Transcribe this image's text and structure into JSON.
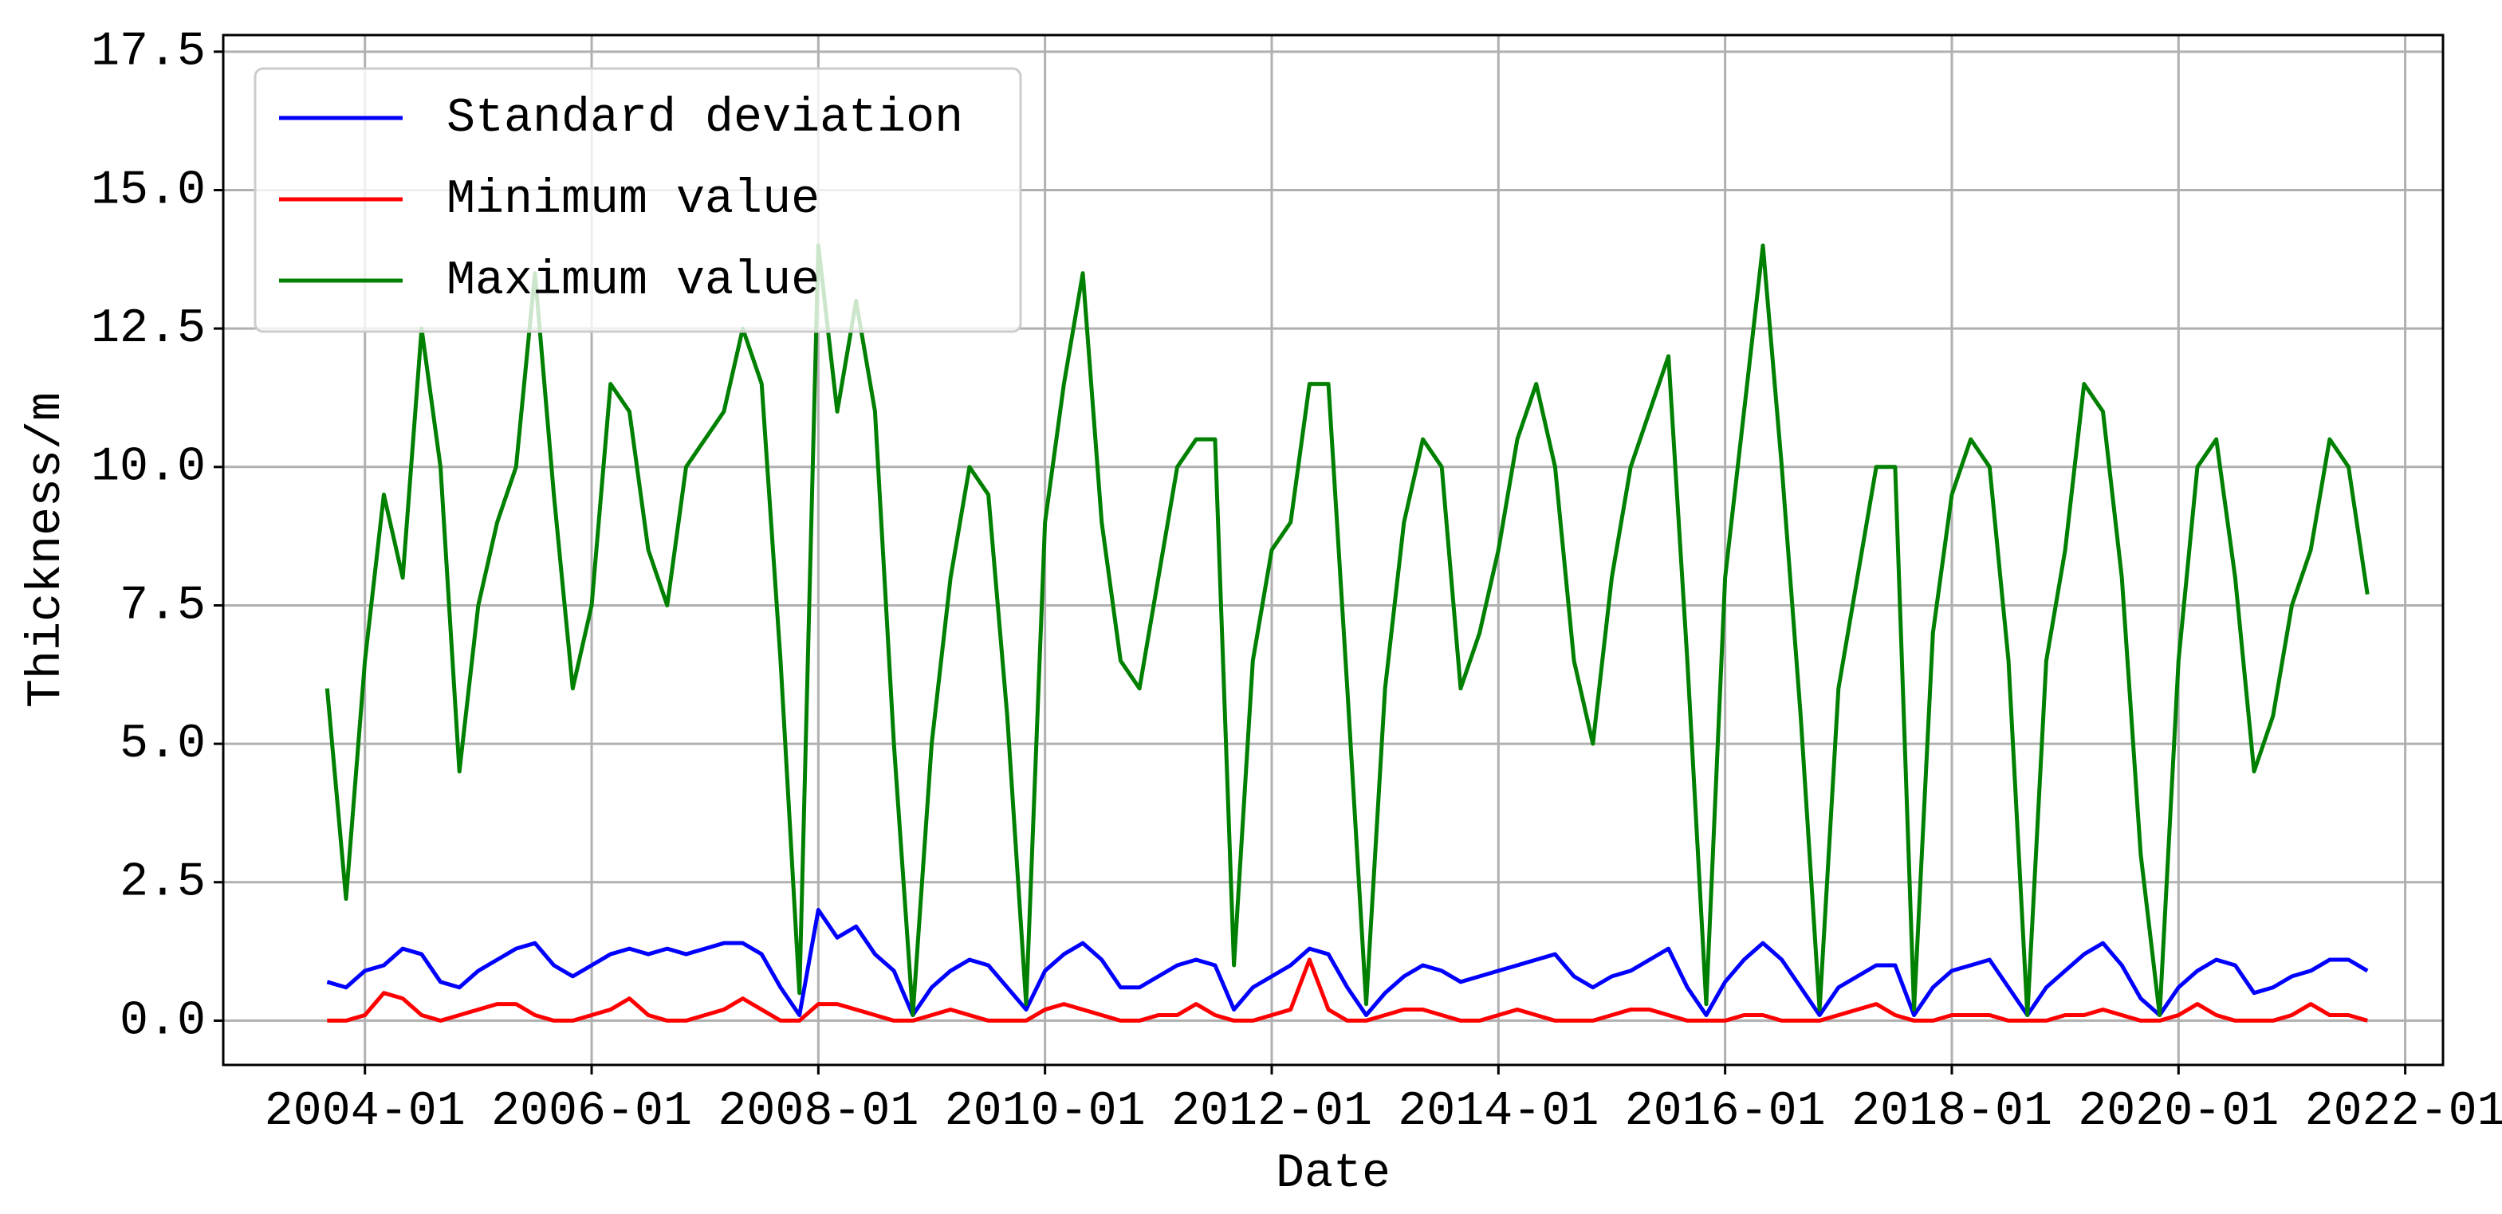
{
  "chart_data": {
    "type": "line",
    "xlabel": "Date",
    "ylabel": "Thickness/m",
    "x": [
      "2003-09",
      "2003-11",
      "2004-01",
      "2004-03",
      "2004-05",
      "2004-07",
      "2004-09",
      "2004-11",
      "2005-01",
      "2005-03",
      "2005-05",
      "2005-07",
      "2005-09",
      "2005-11",
      "2006-01",
      "2006-03",
      "2006-05",
      "2006-07",
      "2006-09",
      "2006-11",
      "2007-01",
      "2007-03",
      "2007-05",
      "2007-07",
      "2007-09",
      "2007-11",
      "2008-01",
      "2008-03",
      "2008-05",
      "2008-07",
      "2008-09",
      "2008-11",
      "2009-01",
      "2009-03",
      "2009-05",
      "2009-07",
      "2009-09",
      "2009-11",
      "2010-01",
      "2010-03",
      "2010-05",
      "2010-07",
      "2010-09",
      "2010-11",
      "2011-01",
      "2011-03",
      "2011-05",
      "2011-07",
      "2011-09",
      "2011-11",
      "2012-01",
      "2012-03",
      "2012-05",
      "2012-07",
      "2012-09",
      "2012-11",
      "2013-01",
      "2013-03",
      "2013-05",
      "2013-07",
      "2013-09",
      "2013-11",
      "2014-01",
      "2014-03",
      "2014-05",
      "2014-07",
      "2014-09",
      "2014-11",
      "2015-01",
      "2015-03",
      "2015-05",
      "2015-07",
      "2015-09",
      "2015-11",
      "2016-01",
      "2016-03",
      "2016-05",
      "2016-07",
      "2016-09",
      "2016-11",
      "2017-01",
      "2017-03",
      "2017-05",
      "2017-07",
      "2017-09",
      "2017-11",
      "2018-01",
      "2018-03",
      "2018-05",
      "2018-07",
      "2018-09",
      "2018-11",
      "2019-01",
      "2019-03",
      "2019-05",
      "2019-07",
      "2019-09",
      "2019-11",
      "2020-01",
      "2020-03",
      "2020-05",
      "2020-07",
      "2020-09",
      "2020-11",
      "2021-01",
      "2021-03",
      "2021-05",
      "2021-07",
      "2021-09"
    ],
    "series": [
      {
        "name": "Standard deviation",
        "color": "#0000ff",
        "values": [
          0.7,
          0.6,
          0.9,
          1.0,
          1.3,
          1.2,
          0.7,
          0.6,
          0.9,
          1.1,
          1.3,
          1.4,
          1.0,
          0.8,
          1.0,
          1.2,
          1.3,
          1.2,
          1.3,
          1.2,
          1.3,
          1.4,
          1.4,
          1.2,
          0.6,
          0.1,
          2.0,
          1.5,
          1.7,
          1.2,
          0.9,
          0.1,
          0.6,
          0.9,
          1.1,
          1.0,
          0.6,
          0.2,
          0.9,
          1.2,
          1.4,
          1.1,
          0.6,
          0.6,
          0.8,
          1.0,
          1.1,
          1.0,
          0.2,
          0.6,
          0.8,
          1.0,
          1.3,
          1.2,
          0.6,
          0.1,
          0.5,
          0.8,
          1.0,
          0.9,
          0.7,
          0.8,
          0.9,
          1.0,
          1.1,
          1.2,
          0.8,
          0.6,
          0.8,
          0.9,
          1.1,
          1.3,
          0.6,
          0.1,
          0.7,
          1.1,
          1.4,
          1.1,
          0.6,
          0.1,
          0.6,
          0.8,
          1.0,
          1.0,
          0.1,
          0.6,
          0.9,
          1.0,
          1.1,
          0.6,
          0.1,
          0.6,
          0.9,
          1.2,
          1.4,
          1.0,
          0.4,
          0.1,
          0.6,
          0.9,
          1.1,
          1.0,
          0.5,
          0.6,
          0.8,
          0.9,
          1.1,
          1.1,
          0.9
        ]
      },
      {
        "name": "Minimum value",
        "color": "#ff0000",
        "values": [
          0.0,
          0.0,
          0.1,
          0.5,
          0.4,
          0.1,
          0.0,
          0.1,
          0.2,
          0.3,
          0.3,
          0.1,
          0.0,
          0.0,
          0.1,
          0.2,
          0.4,
          0.1,
          0.0,
          0.0,
          0.1,
          0.2,
          0.4,
          0.2,
          0.0,
          0.0,
          0.3,
          0.3,
          0.2,
          0.1,
          0.0,
          0.0,
          0.1,
          0.2,
          0.1,
          0.0,
          0.0,
          0.0,
          0.2,
          0.3,
          0.2,
          0.1,
          0.0,
          0.0,
          0.1,
          0.1,
          0.3,
          0.1,
          0.0,
          0.0,
          0.1,
          0.2,
          1.1,
          0.2,
          0.0,
          0.0,
          0.1,
          0.2,
          0.2,
          0.1,
          0.0,
          0.0,
          0.1,
          0.2,
          0.1,
          0.0,
          0.0,
          0.0,
          0.1,
          0.2,
          0.2,
          0.1,
          0.0,
          0.0,
          0.0,
          0.1,
          0.1,
          0.0,
          0.0,
          0.0,
          0.1,
          0.2,
          0.3,
          0.1,
          0.0,
          0.0,
          0.1,
          0.1,
          0.1,
          0.0,
          0.0,
          0.0,
          0.1,
          0.1,
          0.2,
          0.1,
          0.0,
          0.0,
          0.1,
          0.3,
          0.1,
          0.0,
          0.0,
          0.0,
          0.1,
          0.3,
          0.1,
          0.1,
          0.0
        ]
      },
      {
        "name": "Maximum value",
        "color": "#008000",
        "values": [
          6.0,
          2.2,
          6.5,
          9.5,
          8.0,
          12.5,
          10.0,
          4.5,
          7.5,
          9.0,
          10.0,
          13.5,
          9.5,
          6.0,
          7.5,
          11.5,
          11.0,
          8.5,
          7.5,
          10.0,
          10.5,
          11.0,
          12.5,
          11.5,
          6.5,
          0.5,
          14.0,
          11.0,
          13.0,
          11.0,
          5.0,
          0.1,
          5.0,
          8.0,
          10.0,
          9.5,
          5.5,
          0.3,
          9.0,
          11.5,
          13.5,
          9.0,
          6.5,
          6.0,
          8.0,
          10.0,
          10.5,
          10.5,
          1.0,
          6.5,
          8.5,
          9.0,
          11.5,
          11.5,
          6.0,
          0.3,
          6.0,
          9.0,
          10.5,
          10.0,
          6.0,
          7.0,
          8.5,
          10.5,
          11.5,
          10.0,
          6.5,
          5.0,
          8.0,
          10.0,
          11.0,
          12.0,
          6.5,
          0.3,
          8.0,
          11.0,
          14.0,
          10.0,
          5.5,
          0.2,
          6.0,
          8.0,
          10.0,
          10.0,
          0.2,
          7.0,
          9.5,
          10.5,
          10.0,
          6.5,
          0.1,
          6.5,
          8.5,
          11.5,
          11.0,
          8.0,
          3.0,
          0.1,
          6.5,
          10.0,
          10.5,
          8.0,
          4.5,
          5.5,
          7.5,
          8.5,
          10.5,
          10.0,
          7.7
        ]
      }
    ],
    "xlim": [
      "2002-10",
      "2022-05"
    ],
    "xticks": [
      "2004-01",
      "2006-01",
      "2008-01",
      "2010-01",
      "2012-01",
      "2014-01",
      "2016-01",
      "2018-01",
      "2020-01",
      "2022-01"
    ],
    "ylim": [
      -0.8,
      17.8
    ],
    "yticks": [
      {
        "value": 0,
        "label": "0.0"
      },
      2.5,
      {
        "value": 5,
        "label": "5.0"
      },
      7.5,
      {
        "value": 10,
        "label": "10.0"
      },
      12.5,
      {
        "value": 15,
        "label": "15.0"
      },
      17.5
    ],
    "grid": true,
    "legend": "upper left"
  }
}
